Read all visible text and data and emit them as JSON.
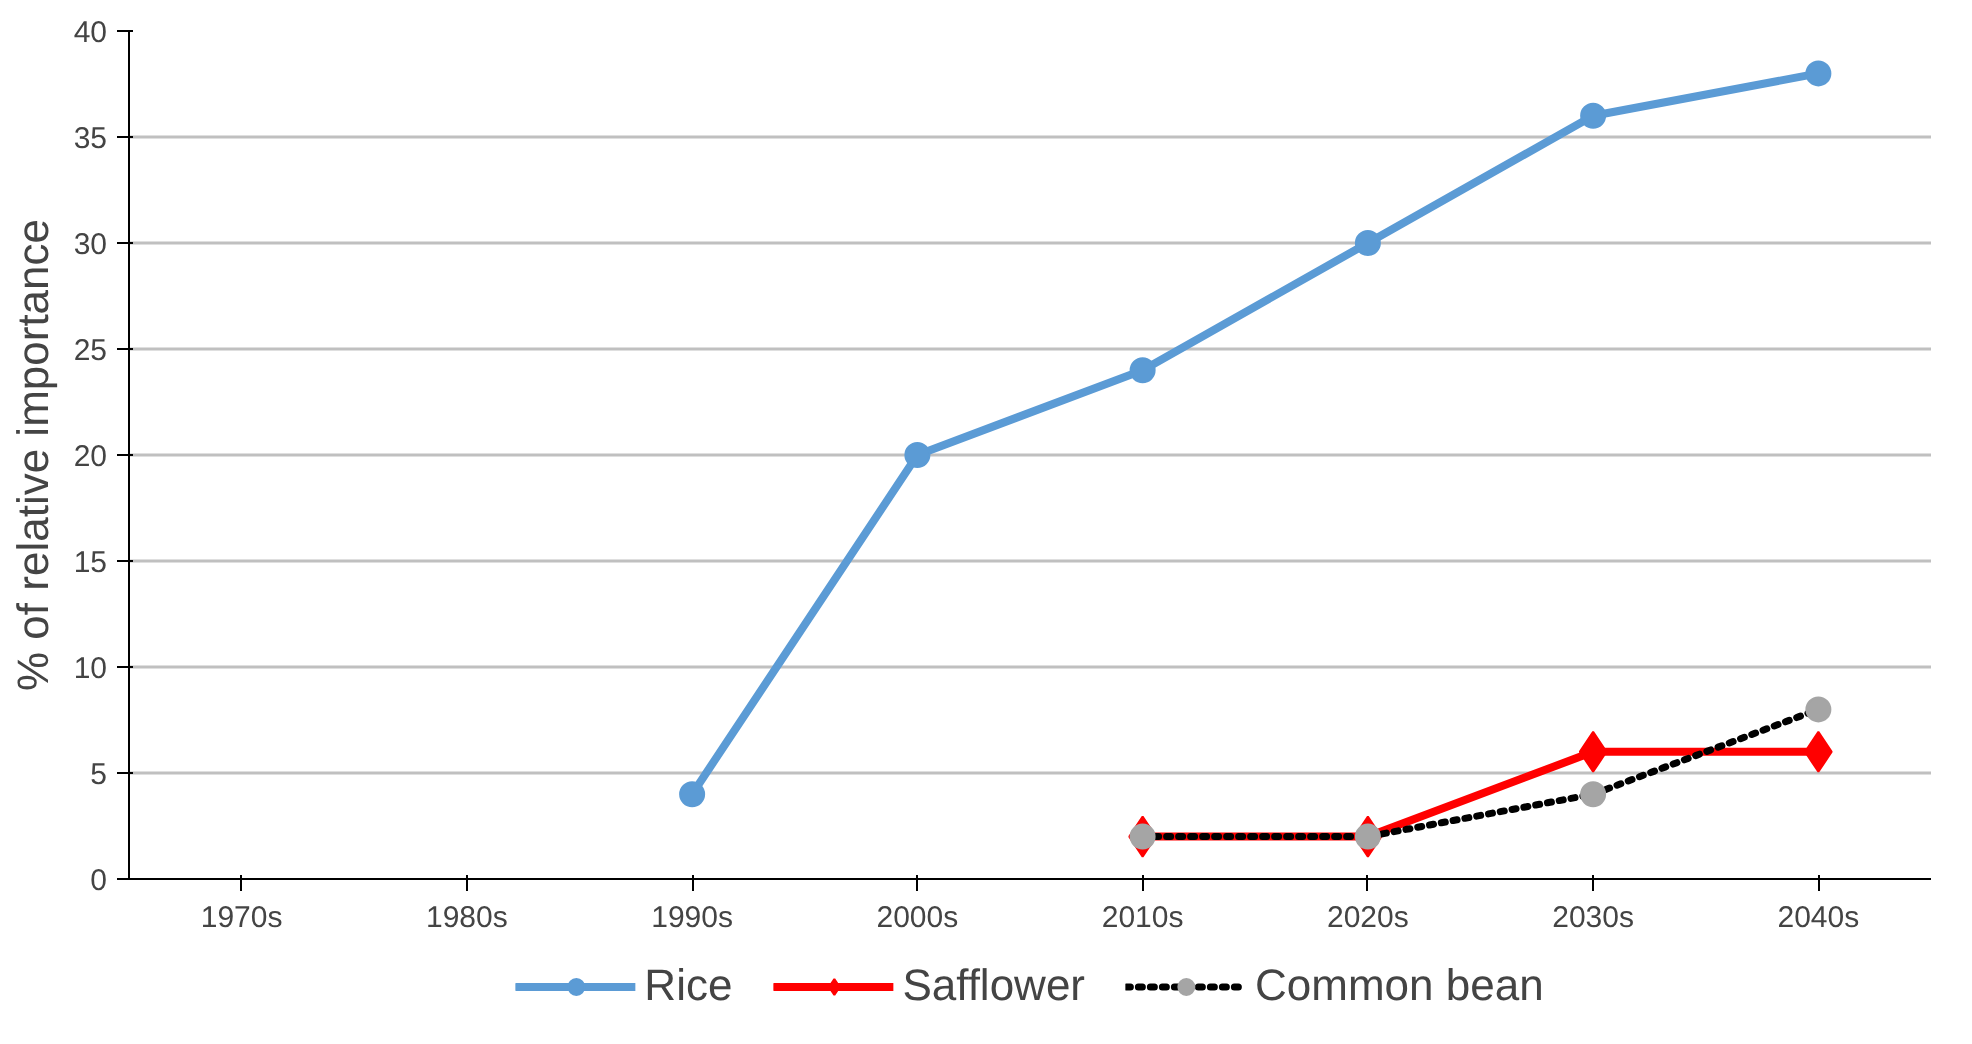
{
  "chart_data": {
    "type": "line",
    "ylabel": "% of relative importance",
    "categories": [
      "1970s",
      "1980s",
      "1990s",
      "2000s",
      "2010s",
      "2020s",
      "2030s",
      "2040s"
    ],
    "series": [
      {
        "name": "Rice",
        "color": "#5b9bd5",
        "marker": "circle",
        "line_style": "solid",
        "values": [
          null,
          null,
          4,
          20,
          24,
          30,
          36,
          38
        ]
      },
      {
        "name": "Safflower",
        "color": "#ff0000",
        "marker": "diamond",
        "line_style": "solid",
        "values": [
          null,
          null,
          null,
          null,
          2,
          2,
          6,
          6
        ]
      },
      {
        "name": "Common bean",
        "color": "#000000",
        "colors": [
          null,
          null,
          null,
          null,
          "#a5a5a5",
          "#a5a5a5",
          "#a5a5a5",
          "#a5a5a5"
        ],
        "marker": "circle",
        "line_style": "dotted",
        "values": [
          null,
          null,
          null,
          null,
          2,
          2,
          4,
          8
        ]
      }
    ],
    "ylim": [
      0,
      40
    ],
    "yticks": [
      0,
      5,
      10,
      15,
      20,
      25,
      30,
      35,
      40
    ],
    "grid": "y",
    "legend": "bottom"
  }
}
